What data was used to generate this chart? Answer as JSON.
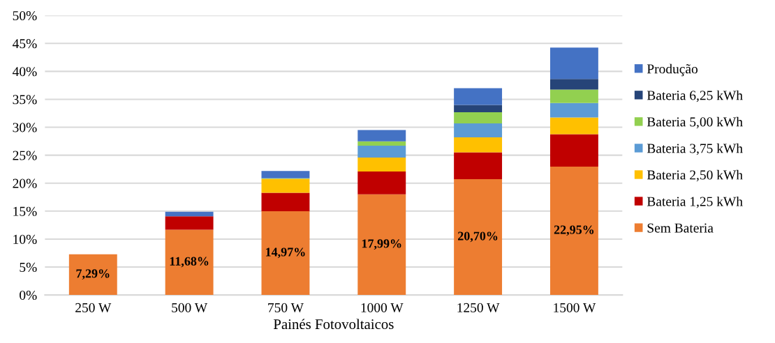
{
  "chart_data": {
    "type": "bar",
    "stacked": true,
    "xlabel": "Painés Fotovoltaicos",
    "categories": [
      "250 W",
      "500 W",
      "750 W",
      "1000 W",
      "1250 W",
      "1500 W"
    ],
    "series": [
      {
        "name": "Sem Bateria",
        "color": "#ed7d31",
        "values": [
          7.29,
          11.68,
          14.97,
          17.99,
          20.7,
          22.95
        ],
        "value_labels": [
          "7,29%",
          "11,68%",
          "14,97%",
          "17,99%",
          "20,70%",
          "22,95%"
        ]
      },
      {
        "name": "Bateria 1,25 kWh",
        "color": "#c00000",
        "values": [
          0,
          2.4,
          3.3,
          4.1,
          4.8,
          5.8
        ]
      },
      {
        "name": "Bateria 2,50 kWh",
        "color": "#ffc000",
        "values": [
          0,
          0,
          2.5,
          2.5,
          2.7,
          3.0
        ]
      },
      {
        "name": "Bateria 3,75 kWh",
        "color": "#5b9bd5",
        "values": [
          0,
          0,
          0,
          2.1,
          2.5,
          2.6
        ]
      },
      {
        "name": "Bateria 5,00 kWh",
        "color": "#92d050",
        "values": [
          0,
          0,
          0.1,
          0.8,
          2.0,
          2.4
        ]
      },
      {
        "name": "Bateria 6,25 kWh",
        "color": "#264478",
        "values": [
          0,
          0,
          0,
          0,
          1.3,
          1.9
        ]
      },
      {
        "name": "Produção",
        "color": "#4472c4",
        "values": [
          0,
          0.8,
          1.3,
          2.0,
          3.0,
          5.6
        ]
      }
    ],
    "ylim": [
      0,
      50
    ],
    "yticks": [
      {
        "value": 0,
        "label": "0%"
      },
      {
        "value": 5,
        "label": "5%"
      },
      {
        "value": 10,
        "label": "10%"
      },
      {
        "value": 15,
        "label": "15%"
      },
      {
        "value": 20,
        "label": "20%"
      },
      {
        "value": 25,
        "label": "25%"
      },
      {
        "value": 30,
        "label": "30%"
      },
      {
        "value": 35,
        "label": "35%"
      },
      {
        "value": 40,
        "label": "40%"
      },
      {
        "value": 45,
        "label": "45%"
      },
      {
        "value": 50,
        "label": "50%"
      }
    ],
    "grid": "y",
    "legend": "right"
  }
}
